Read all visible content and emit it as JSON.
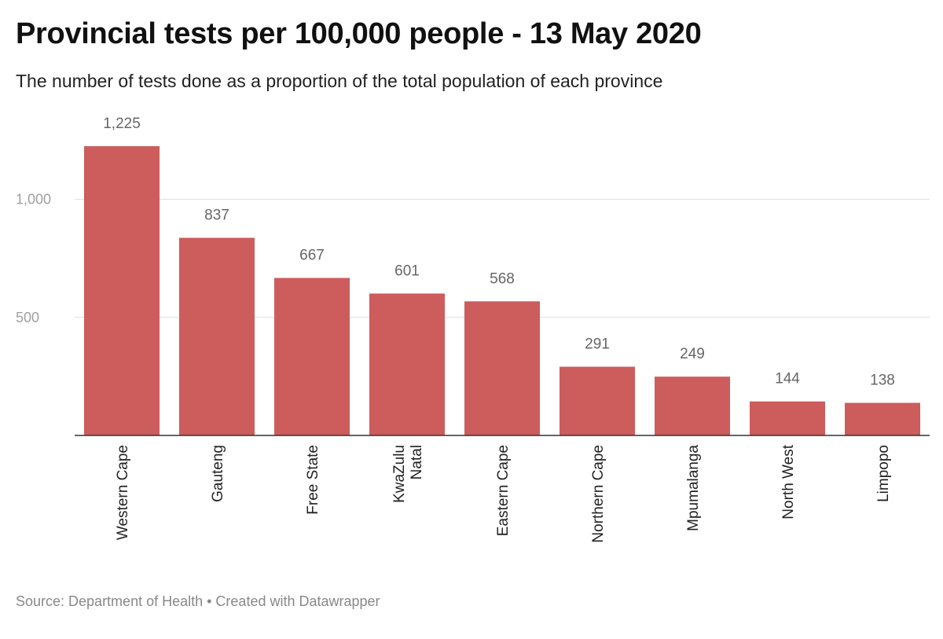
{
  "chart_data": {
    "type": "bar",
    "title": "Provincial tests per 100,000 people - 13 May 2020",
    "subtitle": "The number of tests done as a proportion of the total population of each province",
    "categories": [
      "Western Cape",
      "Gauteng",
      "Free State",
      "KwaZulu Natal",
      "Eastern Cape",
      "Northern Cape",
      "Mpumalanga",
      "North West",
      "Limpopo"
    ],
    "category_lines": [
      [
        "Western Cape"
      ],
      [
        "Gauteng"
      ],
      [
        "Free State"
      ],
      [
        "KwaZulu",
        "Natal"
      ],
      [
        "Eastern Cape"
      ],
      [
        "Northern Cape"
      ],
      [
        "Mpumalanga"
      ],
      [
        "North West"
      ],
      [
        "Limpopo"
      ]
    ],
    "values": [
      1225,
      837,
      667,
      601,
      568,
      291,
      249,
      144,
      138
    ],
    "value_labels": [
      "1,225",
      "837",
      "667",
      "601",
      "568",
      "291",
      "249",
      "144",
      "138"
    ],
    "yticks": [
      500,
      1000
    ],
    "ytick_labels": [
      "500",
      "1,000"
    ],
    "ylim": [
      0,
      1225
    ],
    "grid": true,
    "bar_color": "#cd5c5c",
    "source": "Source: Department of Health • Created with Datawrapper"
  }
}
